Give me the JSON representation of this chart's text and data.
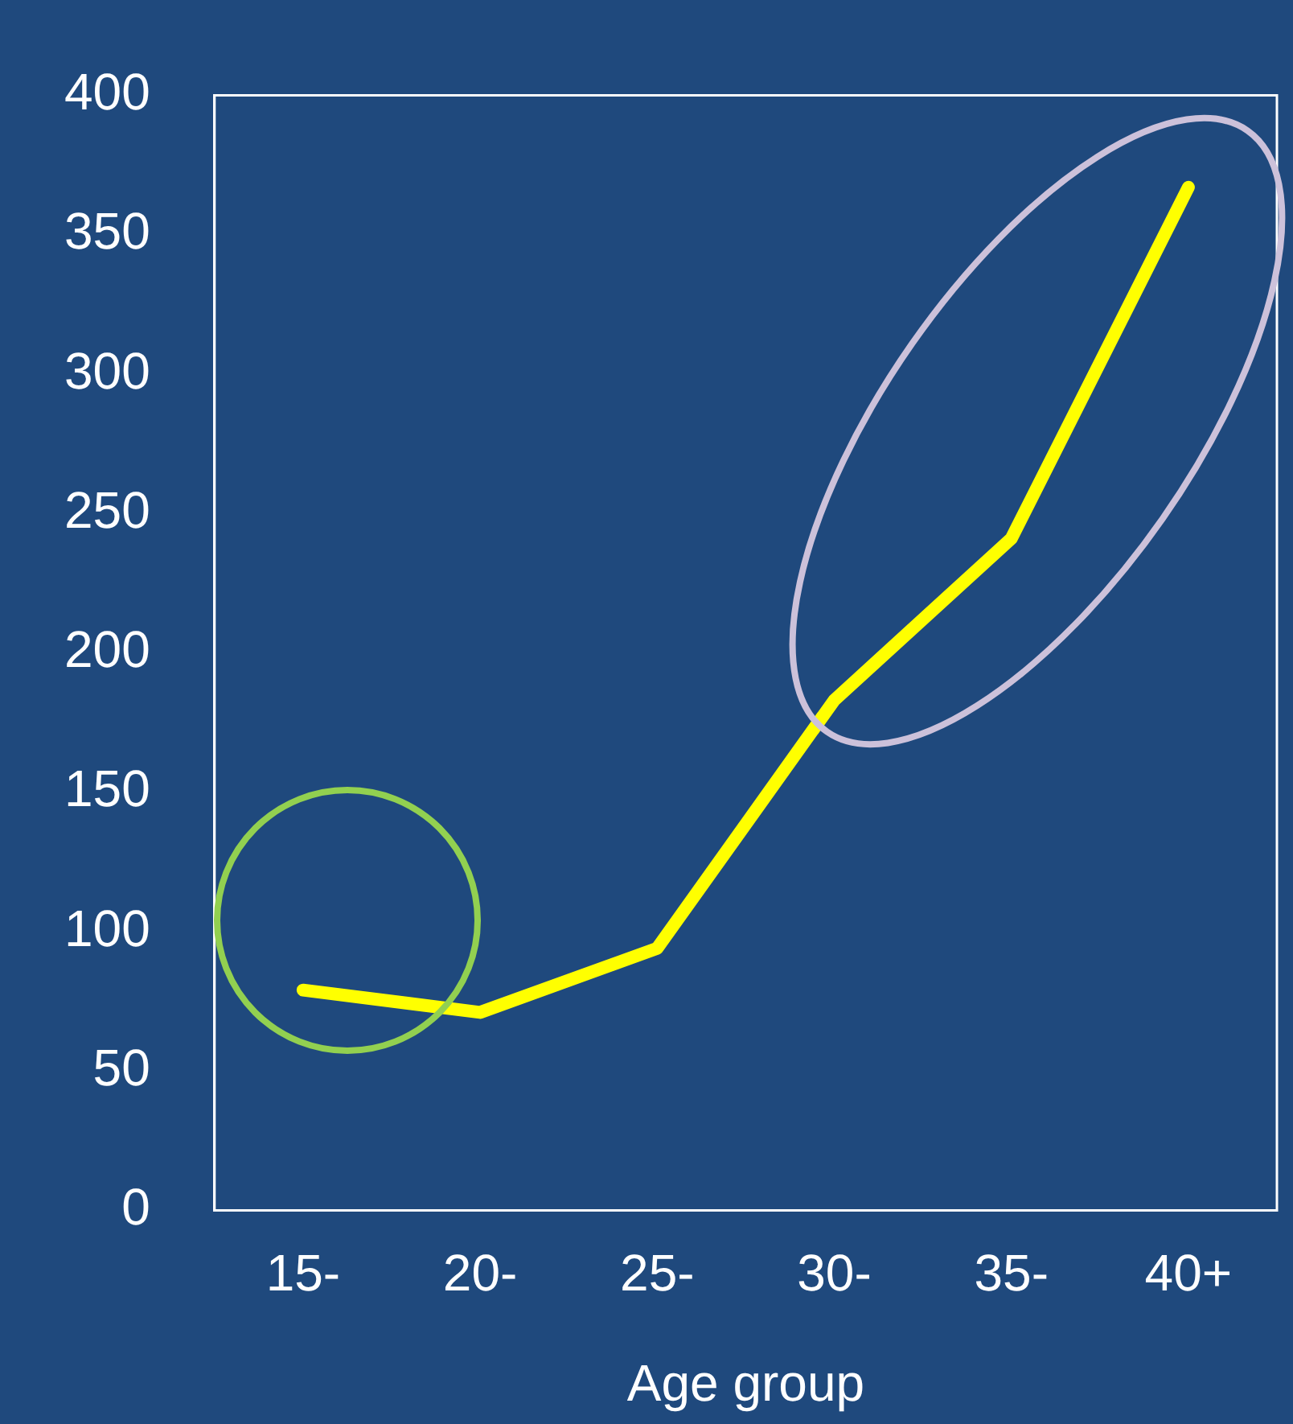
{
  "chart_data": {
    "type": "line",
    "xlabel": "Age group",
    "categories": [
      "15-",
      "20-",
      "25-",
      "30-",
      "35-",
      "40+"
    ],
    "series": [
      {
        "color": "#ffff00",
        "values": [
          79,
          71,
          94,
          183,
          241,
          367
        ]
      }
    ],
    "ylim": [
      0,
      400
    ],
    "yticks": [
      0,
      50,
      100,
      150,
      200,
      250,
      300,
      350,
      400
    ],
    "grid": false,
    "legend": false,
    "marker": "none",
    "line_style": "solid"
  }
}
